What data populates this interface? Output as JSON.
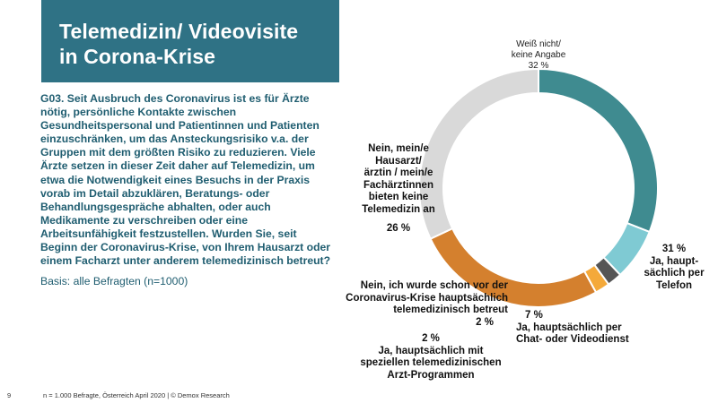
{
  "slide": {
    "title_line1": "Telemedizin/ Videovisite",
    "title_line2": "in Corona-Krise",
    "question": "G03. Seit Ausbruch des Coronavirus ist es für Ärzte nötig, persönliche Kontakte zwischen Gesundheitspersonal und Patientinnen und Patienten einzuschränken, um das Ansteckungsrisiko v.a. der Gruppen mit dem größten Risiko zu reduzieren. Viele Ärzte setzen in dieser Zeit daher auf Telemedizin, um etwa die Notwendigkeit eines Besuchs in der Praxis vorab im Detail abzuklären, Beratungs- oder Behandlungsgespräche abhalten, oder auch Medikamente zu verschreiben oder eine Arbeitsunfähigkeit festzustellen. Wurden Sie, seit Beginn der Coronavirus-Krise, von Ihrem Hausarzt oder einem Facharzt unter anderem telemedizinisch betreut?",
    "basis": "Basis: alle Befragten (n=1000)",
    "page_number": "9",
    "footer": "n = 1.000 Befragte, Österreich April 2020 | © Demox Research"
  },
  "chart_data": {
    "type": "pie",
    "variant": "donut",
    "start": "top",
    "direction": "clockwise",
    "slices": [
      {
        "label": "Ja, haupt-sächlich per Telefon",
        "value": 31,
        "value_label": "31 %",
        "color": "#3f8b90"
      },
      {
        "label": "Ja, hauptsächlich per Chat- oder Videodienst",
        "value": 7,
        "value_label": "7 %",
        "color": "#7fcad3"
      },
      {
        "label": "Ja, hauptsächlich mit speziellen telemedizinischen Arzt-Programmen",
        "value": 2,
        "value_label": "2 %",
        "color": "#555555"
      },
      {
        "label": "Nein, ich wurde schon vor der Coronavirus-Krise hauptsächlich telemedizinisch betreut",
        "value": 2,
        "value_label": "2 %",
        "color": "#f4a93a"
      },
      {
        "label": "Nein, mein/e Hausarzt/ ärztin / mein/e Fachärztinnen bieten keine Telemedizin an",
        "value": 26,
        "value_label": "26 %",
        "color": "#d4802e"
      },
      {
        "label": "Weiß nicht/ keine Angabe",
        "value": 32,
        "value_label": "32 %",
        "color": "#d9d9d9"
      }
    ],
    "labels": {
      "tel": [
        "Ja, haupt-",
        "sächlich per",
        "Telefon"
      ],
      "chat": [
        "Ja, hauptsächlich per",
        "Chat- oder Videodienst"
      ],
      "spez": [
        "Ja, hauptsächlich mit",
        "speziellen telemedizinischen",
        "Arzt-Programmen"
      ],
      "corona": [
        "Nein, ich wurde schon vor der",
        "Coronavirus-Krise hauptsächlich",
        "telemedizinisch betreut"
      ],
      "nein": [
        "Nein, mein/e",
        "Hausarzt/",
        "ärztin / mein/e",
        "Fachärztinnen",
        "bieten keine",
        "Telemedizin an"
      ],
      "wn": [
        "Weiß nicht/",
        "keine Angabe"
      ]
    }
  }
}
